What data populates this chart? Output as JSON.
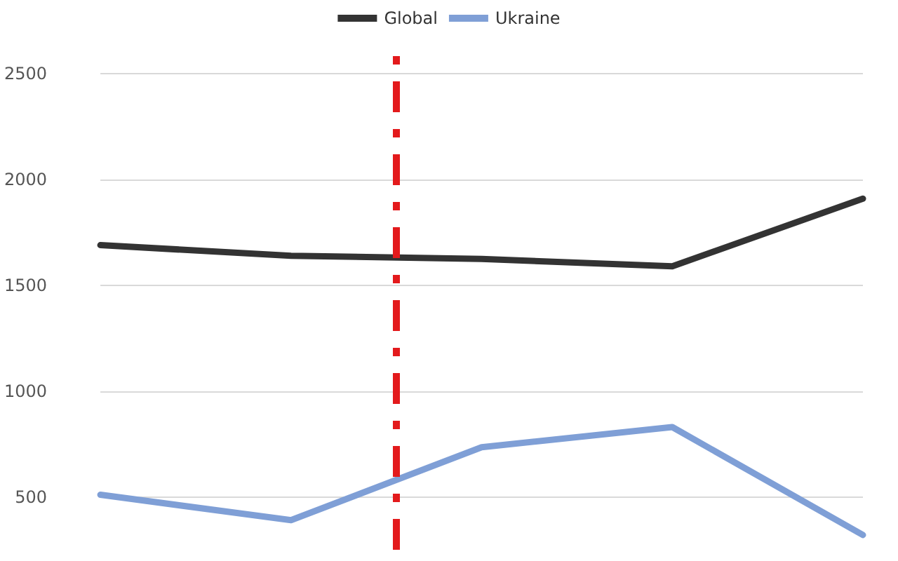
{
  "chart_data": {
    "type": "line",
    "categories": [
      null,
      null,
      null,
      null,
      null
    ],
    "ylim": [
      250,
      2650
    ],
    "yticks": [
      500,
      1000,
      1500,
      2000,
      2500
    ],
    "grid": "y",
    "legend": "top",
    "marker": "none",
    "line_style": "solid",
    "series": [
      {
        "name": "Global",
        "color": "#333333",
        "values": [
          1690,
          1640,
          1625,
          1590,
          1910
        ]
      },
      {
        "name": "Ukraine",
        "color": "#7f9fd6",
        "values": [
          510,
          390,
          735,
          830,
          320
        ]
      }
    ]
  }
}
